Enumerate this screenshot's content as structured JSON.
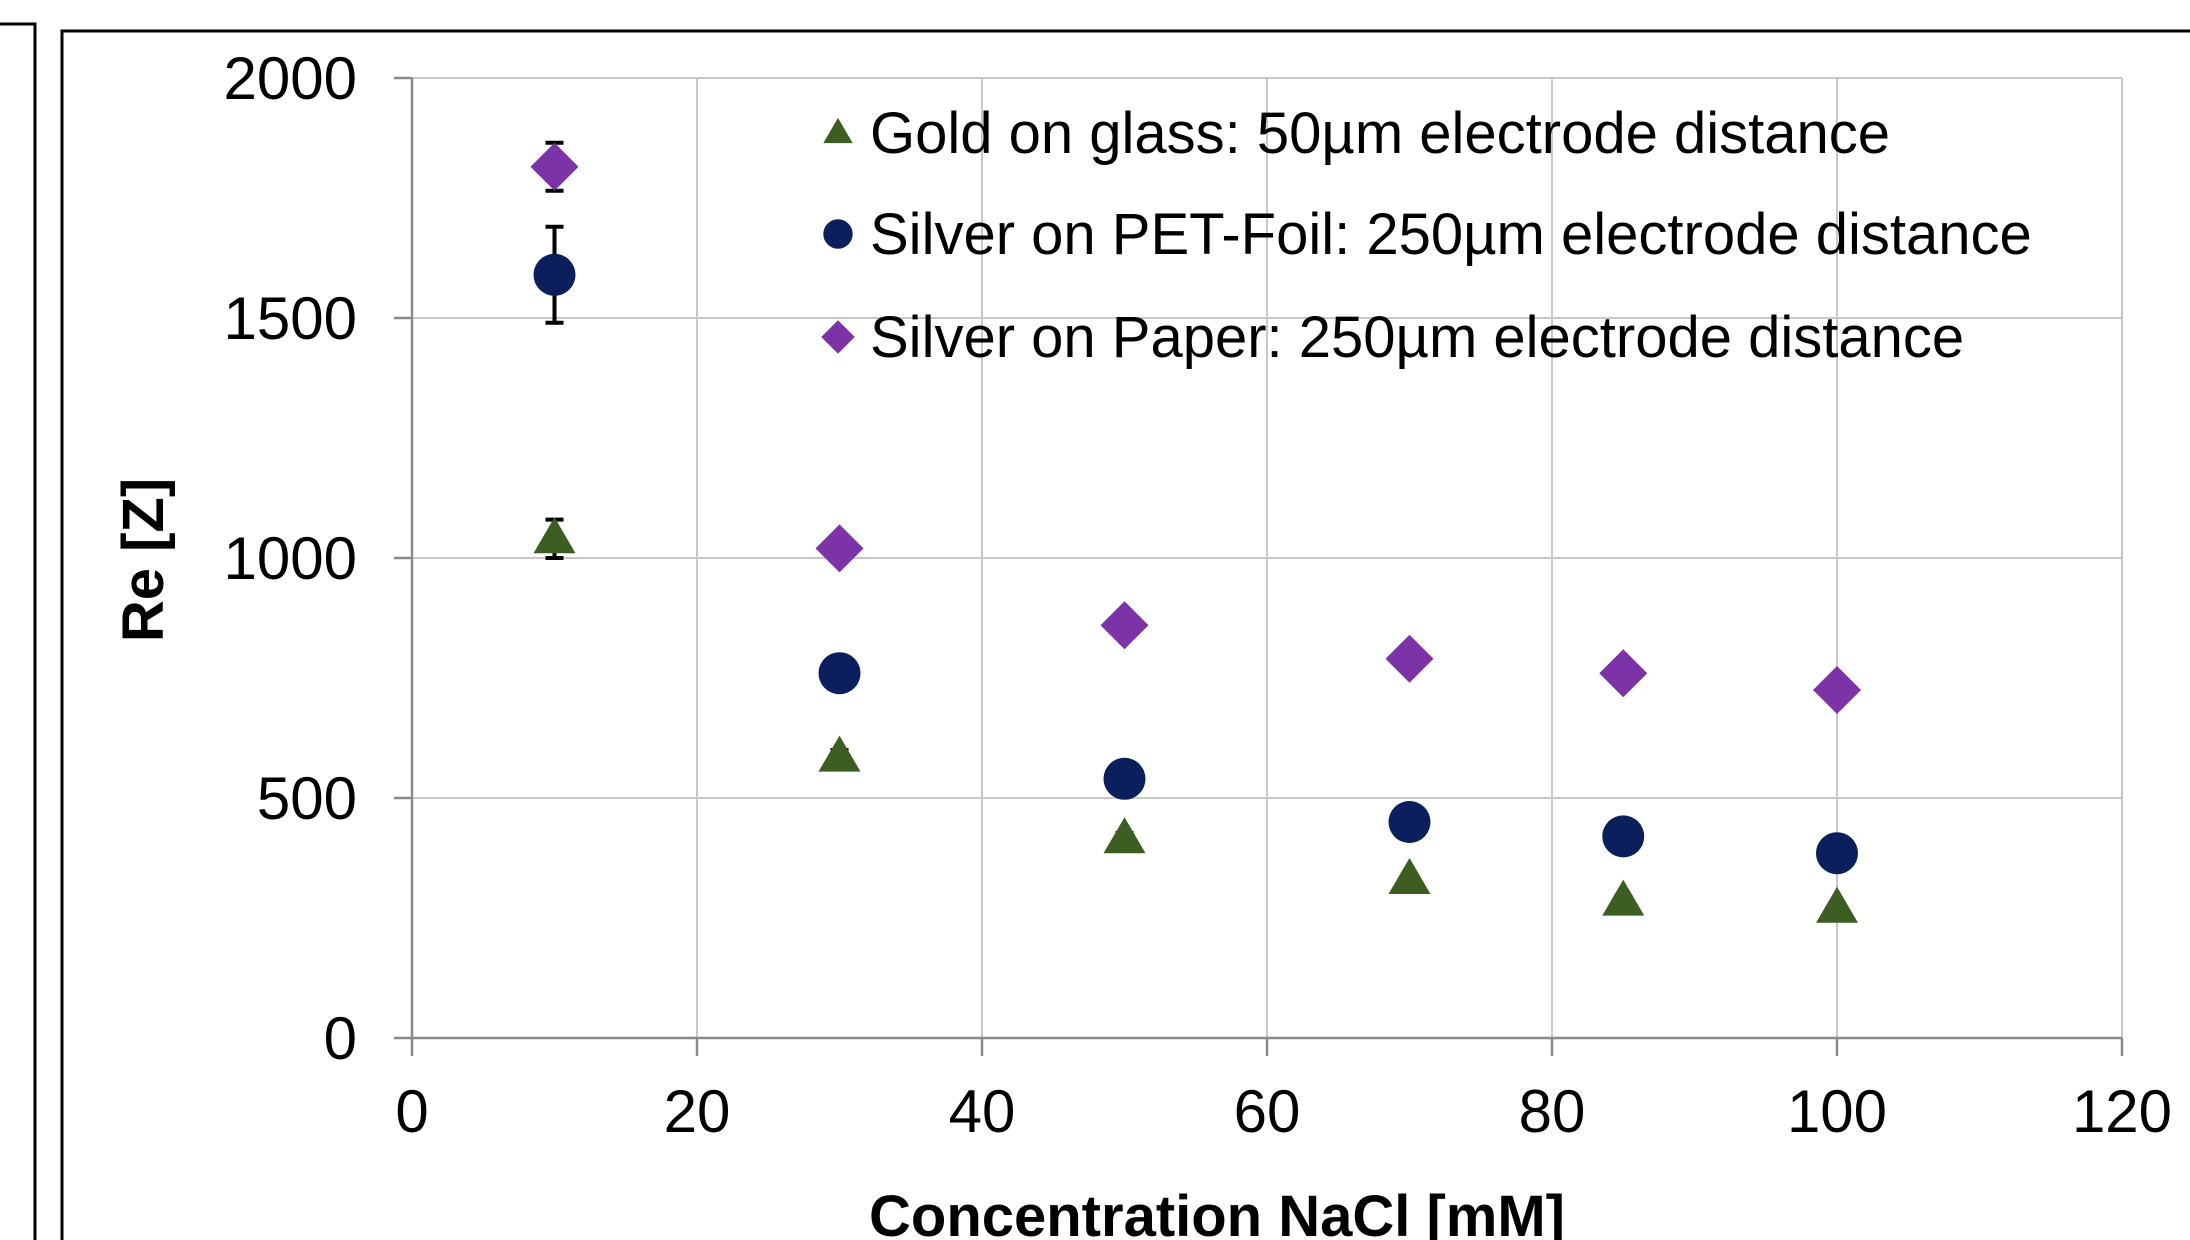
{
  "chart_data": {
    "type": "scatter",
    "title": "",
    "xlabel": "Concentration NaCl [mM]",
    "ylabel": "Re [Z]",
    "xlim": [
      0,
      120
    ],
    "ylim": [
      0,
      2000
    ],
    "xticks": [
      0,
      20,
      40,
      60,
      80,
      100,
      120
    ],
    "yticks": [
      0,
      500,
      1000,
      1500,
      2000
    ],
    "grid": true,
    "legend_position": "top-right",
    "series": [
      {
        "name": "Gold on glass: 50µm electrode distance",
        "marker": "triangle",
        "color": "#3d5e22",
        "x": [
          10,
          30,
          50,
          70,
          85,
          100
        ],
        "y": [
          1040,
          585,
          415,
          330,
          285,
          270
        ],
        "err": [
          40,
          15,
          12,
          10,
          10,
          10
        ]
      },
      {
        "name": "Silver on PET-Foil: 250µm electrode distance",
        "marker": "circle",
        "color": "#0a1f5c",
        "x": [
          10,
          30,
          50,
          70,
          85,
          100
        ],
        "y": [
          1590,
          760,
          540,
          450,
          420,
          385
        ],
        "err": [
          100,
          15,
          12,
          10,
          10,
          10
        ]
      },
      {
        "name": "Silver on Paper: 250µm electrode distance",
        "marker": "diamond",
        "color": "#7c33a8",
        "x": [
          10,
          30,
          50,
          70,
          85,
          100
        ],
        "y": [
          1815,
          1020,
          860,
          790,
          760,
          725
        ],
        "err": [
          50,
          25,
          12,
          10,
          10,
          10
        ]
      }
    ]
  }
}
